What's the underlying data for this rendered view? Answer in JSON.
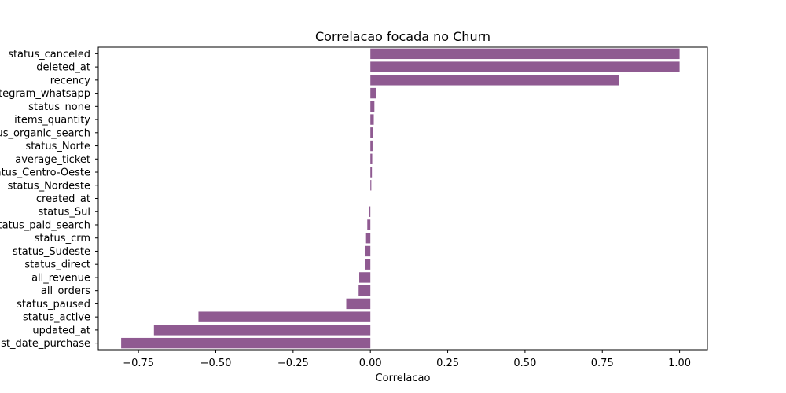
{
  "chart_data": {
    "type": "bar",
    "orientation": "horizontal",
    "title": "Correlacao focada no Churn",
    "xlabel": "Correlacao",
    "ylabel": "",
    "xlim": [
      -0.88,
      1.09
    ],
    "x_ticks": [
      -0.75,
      -0.5,
      -0.25,
      0.0,
      0.25,
      0.5,
      0.75,
      1.0
    ],
    "x_tick_labels": [
      "−0.75",
      "−0.50",
      "−0.25",
      "0.00",
      "0.25",
      "0.50",
      "0.75",
      "1.00"
    ],
    "grid": false,
    "bar_color": "#8f5a91",
    "categories": [
      "status_canceled",
      "deleted_at",
      "recency",
      "integram_whatsapp",
      "status_none",
      "items_quantity",
      "status_organic_search",
      "status_Norte",
      "average_ticket",
      "status_Centro-Oeste",
      "status_Nordeste",
      "created_at",
      "status_Sul",
      "status_paid_search",
      "status_crm",
      "status_Sudeste",
      "status_direct",
      "all_revenue",
      "all_orders",
      "status_paused",
      "status_active",
      "updated_at",
      "last_date_purchase"
    ],
    "values": [
      1.0,
      1.0,
      0.805,
      0.018,
      0.013,
      0.011,
      0.009,
      0.007,
      0.006,
      0.005,
      0.003,
      0.0,
      -0.005,
      -0.01,
      -0.014,
      -0.016,
      -0.017,
      -0.036,
      -0.038,
      -0.078,
      -0.556,
      -0.7,
      -0.806
    ]
  }
}
